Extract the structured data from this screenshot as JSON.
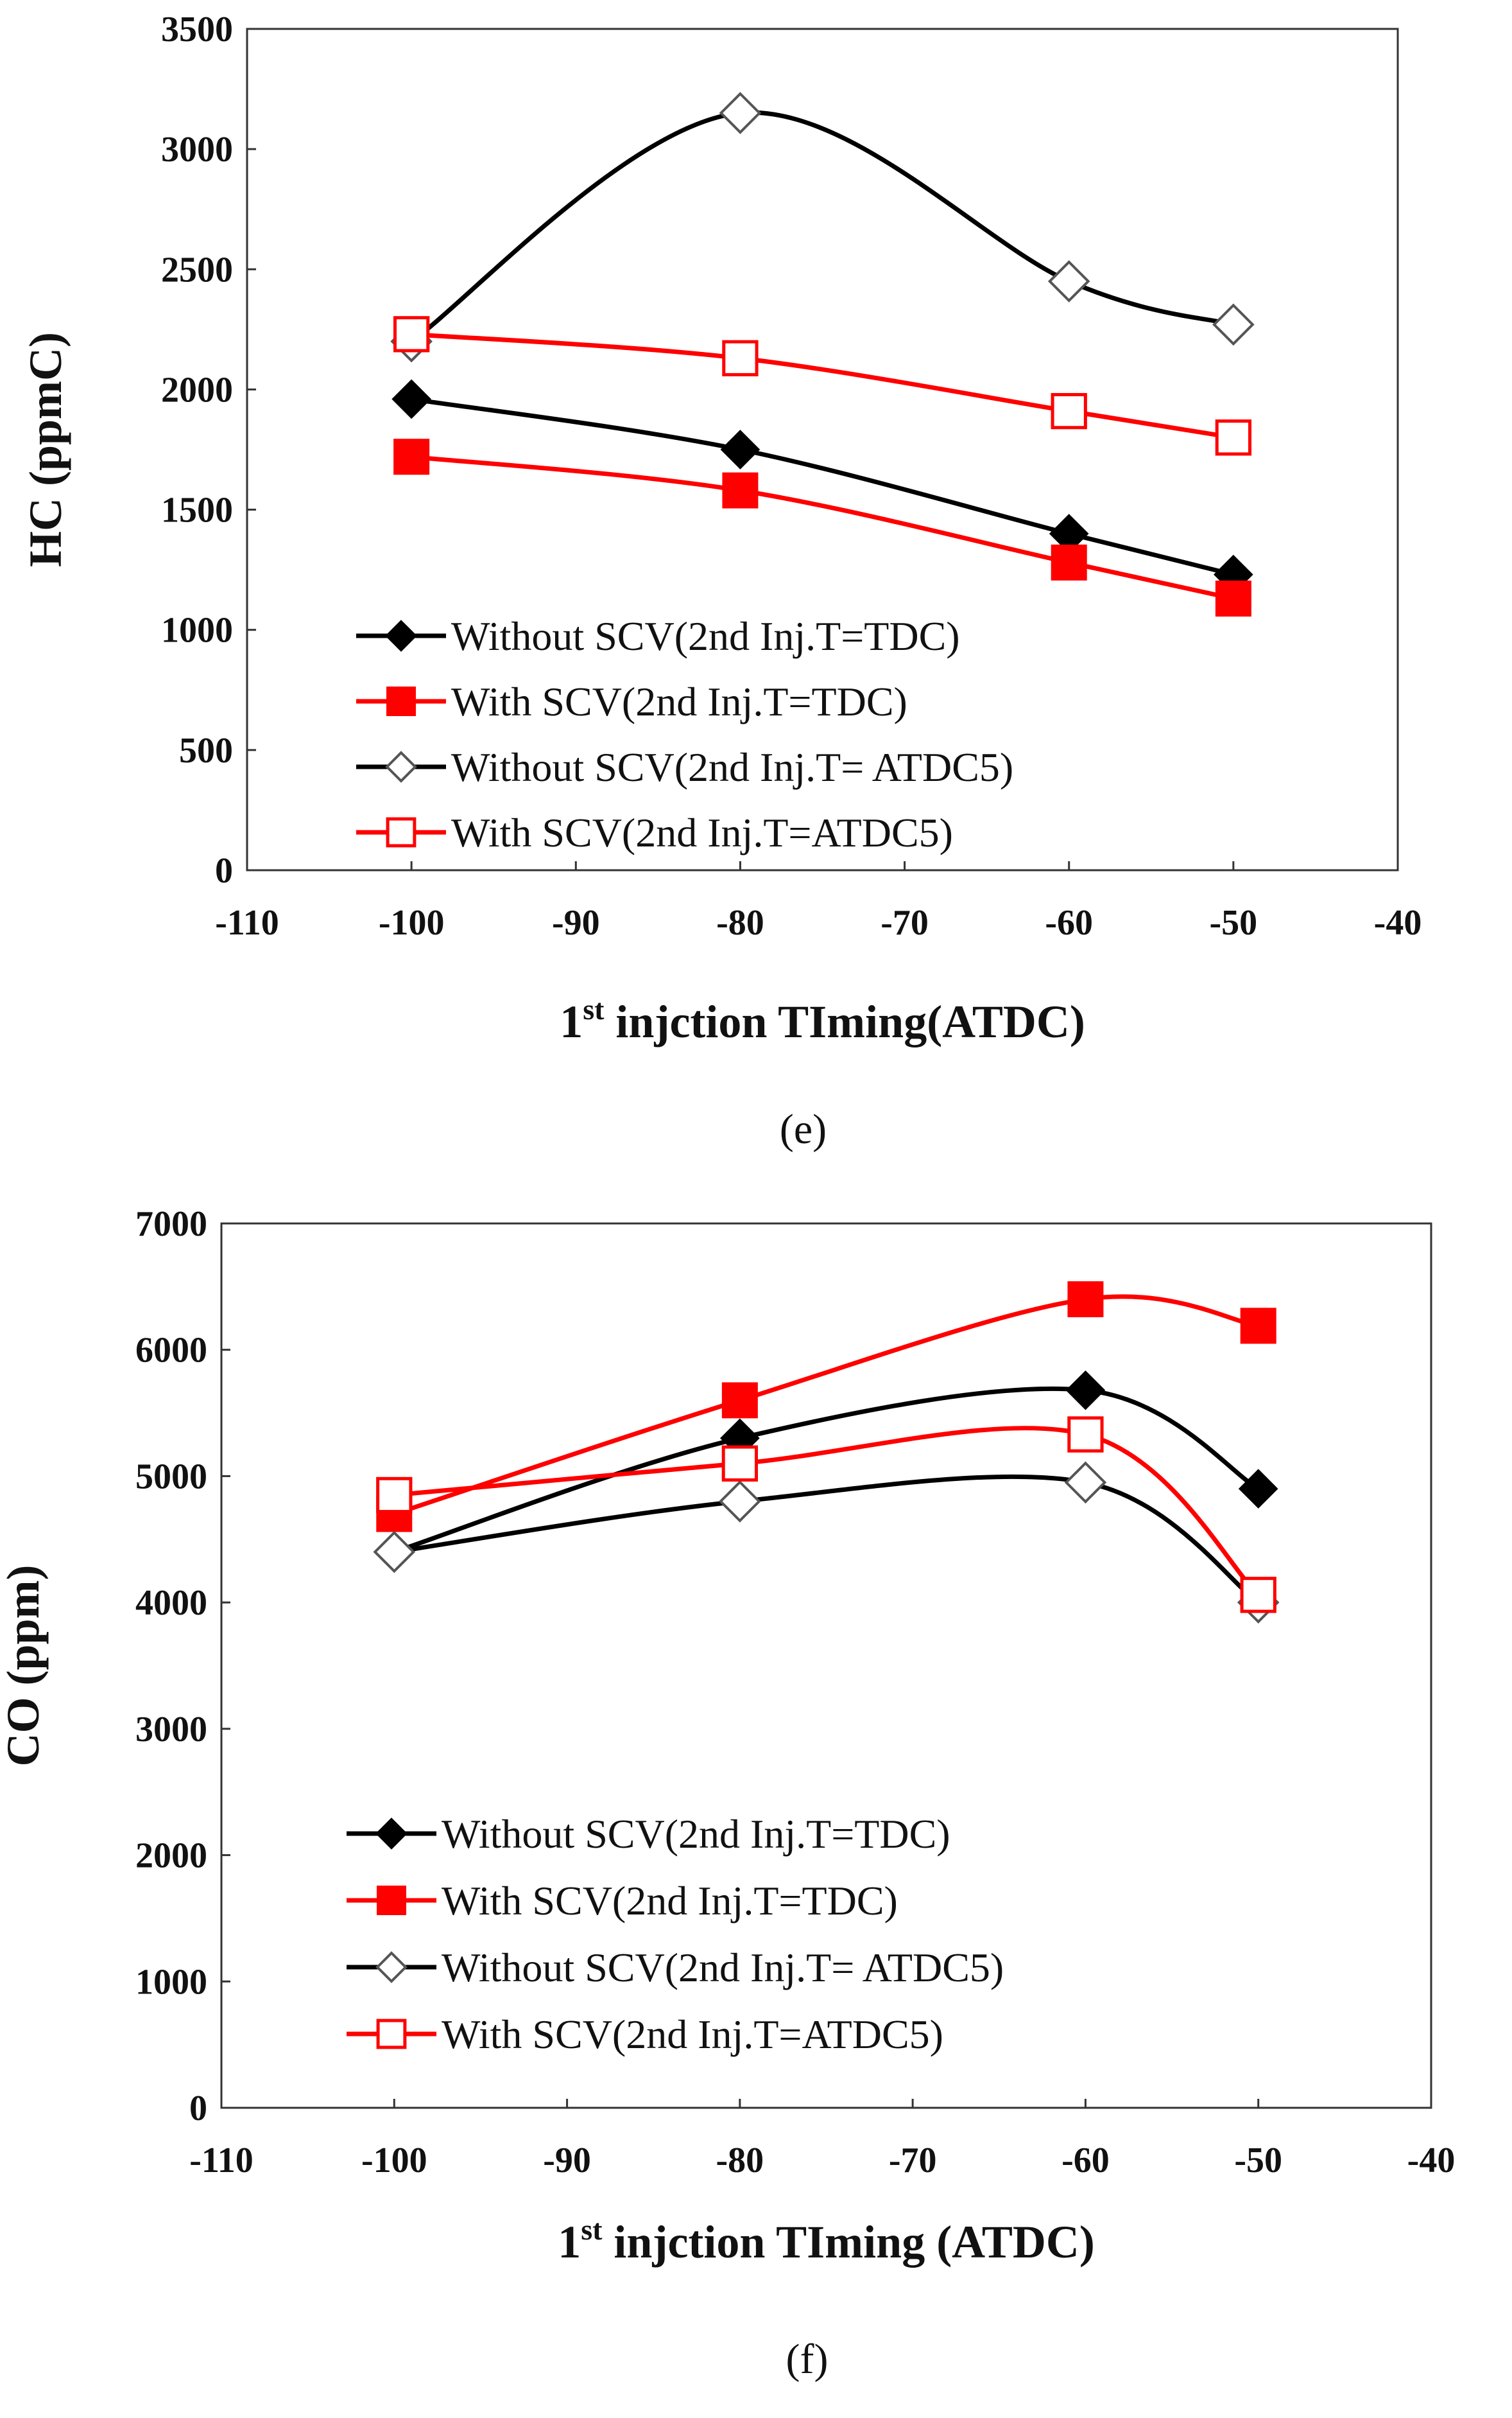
{
  "chart_data": [
    {
      "id": "e",
      "type": "line",
      "caption": "(e)",
      "ylabel": "HC (ppmC)",
      "xlabel_main": "1",
      "xlabel_sup": "st",
      "xlabel_rest": " injction TIming(ATDC)",
      "xlim": [
        -110,
        -40
      ],
      "ylim": [
        0,
        3500
      ],
      "xticks": [
        -110,
        -100,
        -90,
        -80,
        -70,
        -60,
        -50,
        -40
      ],
      "yticks": [
        0,
        500,
        1000,
        1500,
        2000,
        2500,
        3000,
        3500
      ],
      "grid": false,
      "x": [
        -100,
        -80,
        -60,
        -50
      ],
      "series": [
        {
          "name": "Without SCV(2nd Inj.T=TDC)",
          "color": "#000000",
          "marker": "diamond-filled",
          "values": [
            1960,
            1750,
            1400,
            1230
          ]
        },
        {
          "name": "With SCV(2nd Inj.T=TDC)",
          "color": "#ff0000",
          "marker": "square-filled",
          "values": [
            1720,
            1580,
            1280,
            1130
          ]
        },
        {
          "name": "Without SCV(2nd Inj.T= ATDC5)",
          "color": "#000000",
          "marker": "diamond-open",
          "values": [
            2200,
            3150,
            2450,
            2270
          ]
        },
        {
          "name": "With SCV(2nd Inj.T=ATDC5)",
          "color": "#ff0000",
          "marker": "square-open",
          "values": [
            2230,
            2130,
            1910,
            1800
          ]
        }
      ]
    },
    {
      "id": "f",
      "type": "line",
      "caption": "(f)",
      "ylabel": "CO (ppm)",
      "xlabel_main": "1",
      "xlabel_sup": "st",
      "xlabel_rest": " injction TIming (ATDC)",
      "xlim": [
        -110,
        -40
      ],
      "ylim": [
        0,
        7000
      ],
      "xticks": [
        -110,
        -100,
        -90,
        -80,
        -70,
        -60,
        -50,
        -40
      ],
      "yticks": [
        0,
        1000,
        2000,
        3000,
        4000,
        5000,
        6000,
        7000
      ],
      "grid": false,
      "x": [
        -100,
        -80,
        -60,
        -50
      ],
      "series": [
        {
          "name": "Without SCV(2nd Inj.T=TDC)",
          "color": "#000000",
          "marker": "diamond-filled",
          "values": [
            4400,
            5300,
            5680,
            4900
          ]
        },
        {
          "name": "With SCV(2nd Inj.T=TDC)",
          "color": "#ff0000",
          "marker": "square-filled",
          "values": [
            4700,
            5600,
            6400,
            6190
          ]
        },
        {
          "name": "Without SCV(2nd Inj.T= ATDC5)",
          "color": "#000000",
          "marker": "diamond-open",
          "values": [
            4400,
            4800,
            4950,
            4000
          ]
        },
        {
          "name": "With SCV(2nd Inj.T=ATDC5)",
          "color": "#ff0000",
          "marker": "square-open",
          "values": [
            4850,
            5100,
            5330,
            4060
          ]
        }
      ]
    }
  ]
}
